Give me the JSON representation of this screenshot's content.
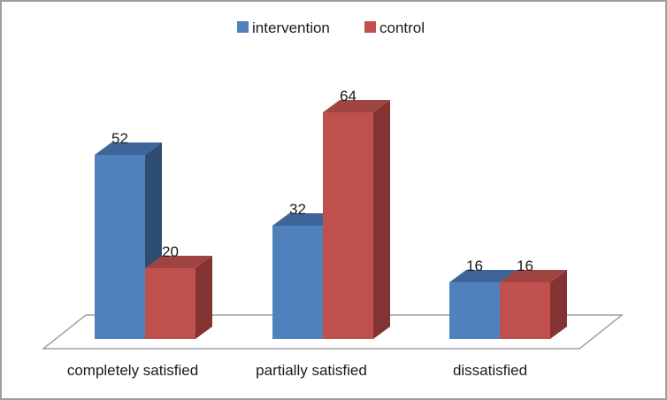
{
  "chart_data": {
    "type": "bar",
    "projection": "3d-clustered-column",
    "title": "",
    "categories": [
      "completely satisfied",
      "partially satisfied",
      "dissatisfied"
    ],
    "series": [
      {
        "name": "intervention",
        "values": [
          52,
          32,
          16
        ],
        "color": "#4F81BD",
        "color_top": "#3D6597",
        "color_side": "#2F4D72"
      },
      {
        "name": "control",
        "values": [
          20,
          64,
          16
        ],
        "color": "#C0504D",
        "color_top": "#A04442",
        "color_side": "#823332"
      }
    ],
    "data_labels_shown": true,
    "legend_position": "top",
    "value_axis_visible": false,
    "gridlines": false,
    "floor_border_color": "#A0A0A0",
    "background_color": "#FFFFFF",
    "frame_border_color": "#9E9E9E",
    "text_color": "#1A1A1A"
  }
}
